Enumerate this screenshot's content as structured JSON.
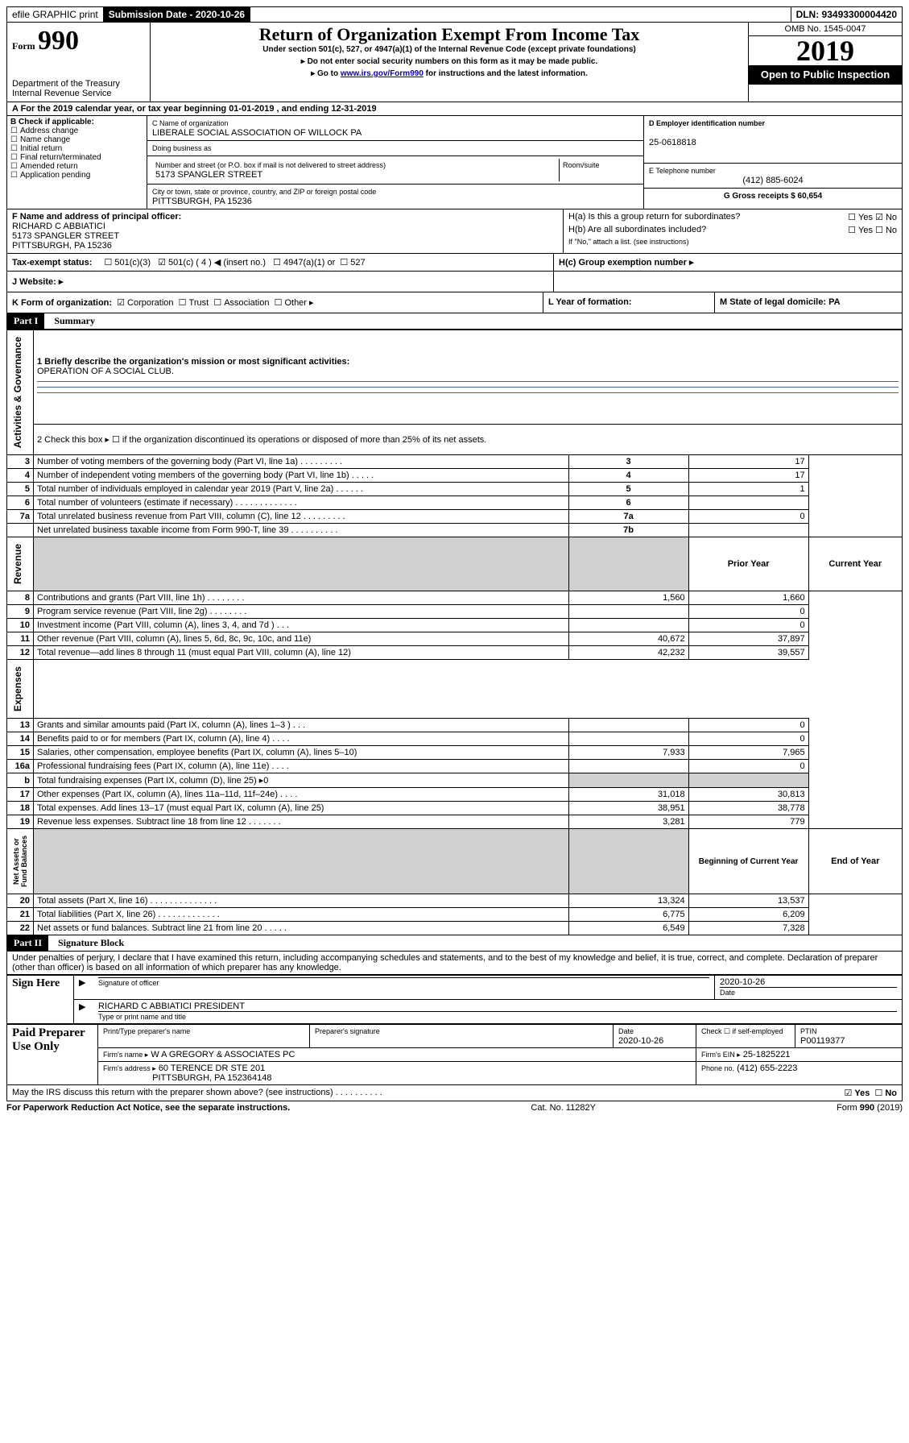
{
  "header": {
    "efile": "efile GRAPHIC print",
    "subdate_label": "Submission Date - 2020-10-26",
    "dln": "DLN: 93493300004420"
  },
  "titleblock": {
    "form_small": "Form",
    "form_big": "990",
    "title": "Return of Organization Exempt From Income Tax",
    "sub1": "Under section 501(c), 527, or 4947(a)(1) of the Internal Revenue Code (except private foundations)",
    "sub2": "▸ Do not enter social security numbers on this form as it may be made public.",
    "sub3a": "▸ Go to ",
    "sub3link": "www.irs.gov/Form990",
    "sub3b": " for instructions and the latest information.",
    "dept1": "Department of the Treasury",
    "dept2": "Internal Revenue Service",
    "omb": "OMB No. 1545-0047",
    "year": "2019",
    "open": "Open to Public Inspection"
  },
  "A": {
    "text": "A For the 2019 calendar year, or tax year beginning 01-01-2019     , and ending 12-31-2019"
  },
  "B": {
    "hdr": "B Check if applicable:",
    "opts": [
      "Address change",
      "Name change",
      "Initial return",
      "Final return/terminated",
      "Amended return",
      "Application pending"
    ]
  },
  "C": {
    "name_lbl": "C Name of organization",
    "name": "LIBERALE SOCIAL ASSOCIATION OF WILLOCK PA",
    "dba_lbl": "Doing business as",
    "addr_lbl": "Number and street (or P.O. box if mail is not delivered to street address)",
    "room_lbl": "Room/suite",
    "addr": "5173 SPANGLER STREET",
    "city_lbl": "City or town, state or province, country, and ZIP or foreign postal code",
    "city": "PITTSBURGH, PA  15236"
  },
  "D": {
    "lbl": "D Employer identification number",
    "val": "25-0618818"
  },
  "E": {
    "lbl": "E Telephone number",
    "val": "(412) 885-6024"
  },
  "G": {
    "lbl": "G Gross receipts $ 60,654"
  },
  "F": {
    "lbl": "F  Name and address of principal officer:",
    "l1": "RICHARD C ABBIATICI",
    "l2": "5173 SPANGLER STREET",
    "l3": "PITTSBURGH, PA  15236"
  },
  "H": {
    "a": "H(a)  Is this a group return for subordinates?",
    "b": "H(b)  Are all subordinates included?",
    "bnote": "If \"No,\" attach a list. (see instructions)",
    "c": "H(c)  Group exemption number ▸",
    "yes": "Yes",
    "no": "No"
  },
  "I": {
    "lbl": "Tax-exempt status:",
    "o1": "501(c)(3)",
    "o2": "501(c) ( 4 ) ◀ (insert no.)",
    "o3": "4947(a)(1) or",
    "o4": "527"
  },
  "J": {
    "lbl": "J    Website: ▸"
  },
  "K": {
    "lbl": "K Form of organization:",
    "o1": "Corporation",
    "o2": "Trust",
    "o3": "Association",
    "o4": "Other ▸"
  },
  "L": {
    "lbl": "L Year of formation:"
  },
  "M": {
    "lbl": "M State of legal domicile: PA"
  },
  "part1": {
    "hdr": "Part I",
    "title": "Summary"
  },
  "summary": {
    "l1a": "1  Briefly describe the organization's mission or most significant activities:",
    "l1b": "OPERATION OF A SOCIAL CLUB.",
    "l2": "2   Check this box ▸ ☐  if the organization discontinued its operations or disposed of more than 25% of its net assets.",
    "rows_ag": [
      {
        "n": "3",
        "t": "Number of voting members of the governing body (Part VI, line 1a)   .    .    .    .    .    .    .    .    .",
        "a": "3",
        "v": "17"
      },
      {
        "n": "4",
        "t": "Number of independent voting members of the governing body (Part VI, line 1b)  .    .    .    .    .",
        "a": "4",
        "v": "17"
      },
      {
        "n": "5",
        "t": "Total number of individuals employed in calendar year 2019 (Part V, line 2a)   .    .    .    .    .    .",
        "a": "5",
        "v": "1"
      },
      {
        "n": "6",
        "t": "Total number of volunteers (estimate if necessary)   .    .    .    .    .    .    .    .    .    .    .    .    .",
        "a": "6",
        "v": ""
      },
      {
        "n": "7a",
        "t": "Total unrelated business revenue from Part VIII, column (C), line 12   .    .    .    .    .    .    .    .    .",
        "a": "7a",
        "v": "0"
      },
      {
        "n": "",
        "t": "Net unrelated business taxable income from Form 990-T, line 39   .    .    .    .    .    .    .    .    .    .",
        "a": "7b",
        "v": ""
      }
    ],
    "hdr_prior": "Prior Year",
    "hdr_curr": "Current Year",
    "rows_rev": [
      {
        "n": "8",
        "t": "Contributions and grants (Part VIII, line 1h)   .    .    .    .    .    .    .    .",
        "p": "1,560",
        "c": "1,660"
      },
      {
        "n": "9",
        "t": "Program service revenue (Part VIII, line 2g)   .    .    .    .    .    .    .    .",
        "p": "",
        "c": "0"
      },
      {
        "n": "10",
        "t": "Investment income (Part VIII, column (A), lines 3, 4, and 7d )   .    .    .",
        "p": "",
        "c": "0"
      },
      {
        "n": "11",
        "t": "Other revenue (Part VIII, column (A), lines 5, 6d, 8c, 9c, 10c, and 11e)",
        "p": "40,672",
        "c": "37,897"
      },
      {
        "n": "12",
        "t": "Total revenue—add lines 8 through 11 (must equal Part VIII, column (A), line 12)",
        "p": "42,232",
        "c": "39,557"
      }
    ],
    "rows_exp": [
      {
        "n": "13",
        "t": "Grants and similar amounts paid (Part IX, column (A), lines 1–3 )   .    .    .",
        "p": "",
        "c": "0"
      },
      {
        "n": "14",
        "t": "Benefits paid to or for members (Part IX, column (A), line 4)   .    .    .    .",
        "p": "",
        "c": "0"
      },
      {
        "n": "15",
        "t": "Salaries, other compensation, employee benefits (Part IX, column (A), lines 5–10)",
        "p": "7,933",
        "c": "7,965"
      },
      {
        "n": "16a",
        "t": "Professional fundraising fees (Part IX, column (A), line 11e)   .    .    .    .",
        "p": "",
        "c": "0"
      },
      {
        "n": "b",
        "t": "Total fundraising expenses (Part IX, column (D), line 25) ▸0",
        "p": "SHADE",
        "c": "SHADE"
      },
      {
        "n": "17",
        "t": "Other expenses (Part IX, column (A), lines 11a–11d, 11f–24e)   .    .    .    .",
        "p": "31,018",
        "c": "30,813"
      },
      {
        "n": "18",
        "t": "Total expenses. Add lines 13–17 (must equal Part IX, column (A), line 25)",
        "p": "38,951",
        "c": "38,778"
      },
      {
        "n": "19",
        "t": "Revenue less expenses. Subtract line 18 from line 12   .    .    .    .    .    .    .",
        "p": "3,281",
        "c": "779"
      }
    ],
    "hdr_beg": "Beginning of Current Year",
    "hdr_end": "End of Year",
    "rows_na": [
      {
        "n": "20",
        "t": "Total assets (Part X, line 16)   .    .    .    .    .    .    .    .    .    .    .    .    .    .",
        "p": "13,324",
        "c": "13,537"
      },
      {
        "n": "21",
        "t": "Total liabilities (Part X, line 26)   .    .    .    .    .    .    .    .    .    .    .    .    .",
        "p": "6,775",
        "c": "6,209"
      },
      {
        "n": "22",
        "t": "Net assets or fund balances. Subtract line 21 from line 20   .    .    .    .    .",
        "p": "6,549",
        "c": "7,328"
      }
    ],
    "vlabels": {
      "ag": "Activities & Governance",
      "rev": "Revenue",
      "exp": "Expenses",
      "na": "Net Assets or\nFund Balances"
    }
  },
  "part2": {
    "hdr": "Part II",
    "title": "Signature Block",
    "decl": "Under penalties of perjury, I declare that I have examined this return, including accompanying schedules and statements, and to the best of my knowledge and belief, it is true, correct, and complete. Declaration of preparer (other than officer) is based on all information of which preparer has any knowledge."
  },
  "sign": {
    "here": "Sign Here",
    "sig_off": "Signature of officer",
    "date": "Date",
    "date_v": "2020-10-26",
    "name": "RICHARD C ABBIATICI  PRESIDENT",
    "name_lbl": "Type or print name and title"
  },
  "paid": {
    "hdr": "Paid Preparer Use Only",
    "c1": "Print/Type preparer's name",
    "c2": "Preparer's signature",
    "c3": "Date",
    "c3v": "2020-10-26",
    "c4": "Check ☐ if self-employed",
    "c5": "PTIN",
    "c5v": "P00119377",
    "firm_lbl": "Firm's name     ▸",
    "firm": "W A GREGORY & ASSOCIATES PC",
    "ein_lbl": "Firm's EIN ▸",
    "ein": "25-1825221",
    "addr_lbl": "Firm's address ▸",
    "addr1": "60 TERENCE DR STE 201",
    "addr2": "PITTSBURGH, PA  152364148",
    "ph_lbl": "Phone no.",
    "ph": "(412) 655-2223"
  },
  "discuss": {
    "q": "May the IRS discuss this return with the preparer shown above? (see instructions)   .    .    .    .    .    .    .    .    .    .",
    "yes": "Yes",
    "no": "No"
  },
  "footer": {
    "l": "For Paperwork Reduction Act Notice, see the separate instructions.",
    "m": "Cat. No. 11282Y",
    "r": "Form 990 (2019)"
  }
}
